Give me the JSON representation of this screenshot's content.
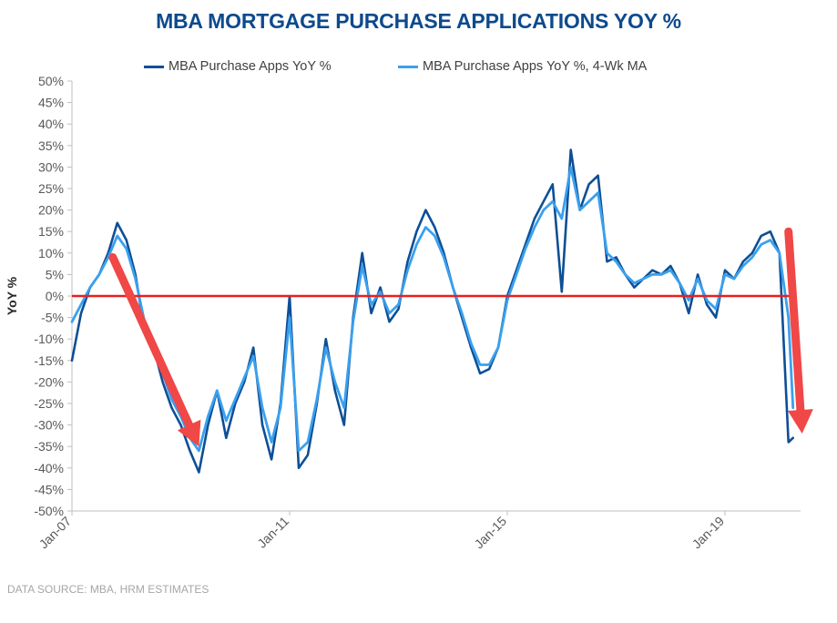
{
  "source_note": "DATA SOURCE: MBA, HRM ESTIMATES",
  "chart_data": {
    "type": "line",
    "title": "MBA MORTGAGE PURCHASE APPLICATIONS YOY %",
    "ylabel": "YoY %",
    "xlabel": "",
    "ylim": [
      -50,
      50
    ],
    "y_ticks": [
      50,
      45,
      40,
      35,
      30,
      25,
      20,
      15,
      10,
      5,
      0,
      -5,
      -10,
      -15,
      -20,
      -25,
      -30,
      -35,
      -40,
      -45,
      -50
    ],
    "y_tick_labels": [
      "50%",
      "45%",
      "40%",
      "35%",
      "30%",
      "25%",
      "20%",
      "15%",
      "10%",
      "5%",
      "0%",
      "-5%",
      "-10%",
      "-15%",
      "-20%",
      "-25%",
      "-30%",
      "-35%",
      "-40%",
      "-45%",
      "-50%"
    ],
    "x_range": [
      "2007-01",
      "2020-06"
    ],
    "x_ticks": [
      "2007-01",
      "2011-01",
      "2015-01",
      "2019-01"
    ],
    "x_tick_labels": [
      "Jan-07",
      "Jan-11",
      "Jan-15",
      "Jan-19"
    ],
    "grid": false,
    "legend_position": "top-center",
    "reference_line": {
      "y": 0,
      "color": "#e8201f"
    },
    "colors": {
      "raw": "#0d4f96",
      "ma": "#3aa0ee",
      "arrow": "#f04747",
      "title": "#0d4a8c"
    },
    "series": [
      {
        "name": "MBA Purchase Apps YoY %",
        "color": "#0d4f96",
        "x": [
          "2007-01",
          "2007-03",
          "2007-05",
          "2007-07",
          "2007-09",
          "2007-11",
          "2008-01",
          "2008-03",
          "2008-05",
          "2008-07",
          "2008-09",
          "2008-11",
          "2009-01",
          "2009-03",
          "2009-05",
          "2009-07",
          "2009-09",
          "2009-11",
          "2010-01",
          "2010-03",
          "2010-05",
          "2010-07",
          "2010-09",
          "2010-11",
          "2011-01",
          "2011-03",
          "2011-05",
          "2011-07",
          "2011-09",
          "2011-11",
          "2012-01",
          "2012-03",
          "2012-05",
          "2012-07",
          "2012-09",
          "2012-11",
          "2013-01",
          "2013-03",
          "2013-05",
          "2013-07",
          "2013-09",
          "2013-11",
          "2014-01",
          "2014-03",
          "2014-05",
          "2014-07",
          "2014-09",
          "2014-11",
          "2015-01",
          "2015-03",
          "2015-05",
          "2015-07",
          "2015-09",
          "2015-11",
          "2016-01",
          "2016-03",
          "2016-05",
          "2016-07",
          "2016-09",
          "2016-11",
          "2017-01",
          "2017-03",
          "2017-05",
          "2017-07",
          "2017-09",
          "2017-11",
          "2018-01",
          "2018-03",
          "2018-05",
          "2018-07",
          "2018-09",
          "2018-11",
          "2019-01",
          "2019-03",
          "2019-05",
          "2019-07",
          "2019-09",
          "2019-11",
          "2020-01",
          "2020-03",
          "2020-04"
        ],
        "values": [
          -15,
          -4,
          2,
          5,
          10,
          17,
          13,
          5,
          -8,
          -12,
          -20,
          -26,
          -30,
          -36,
          -41,
          -30,
          -22,
          -33,
          -25,
          -20,
          -12,
          -30,
          -38,
          -25,
          0,
          -40,
          -37,
          -25,
          -10,
          -22,
          -30,
          -5,
          10,
          -4,
          2,
          -6,
          -3,
          8,
          15,
          20,
          16,
          10,
          2,
          -5,
          -12,
          -18,
          -17,
          -12,
          0,
          6,
          12,
          18,
          22,
          26,
          1,
          34,
          20,
          26,
          28,
          8,
          9,
          5,
          2,
          4,
          6,
          5,
          7,
          3,
          -4,
          5,
          -2,
          -5,
          6,
          4,
          8,
          10,
          14,
          15,
          10,
          -34,
          -33
        ]
      },
      {
        "name": "MBA Purchase Apps YoY %, 4-Wk MA",
        "color": "#3aa0ee",
        "x": [
          "2007-01",
          "2007-03",
          "2007-05",
          "2007-07",
          "2007-09",
          "2007-11",
          "2008-01",
          "2008-03",
          "2008-05",
          "2008-07",
          "2008-09",
          "2008-11",
          "2009-01",
          "2009-03",
          "2009-05",
          "2009-07",
          "2009-09",
          "2009-11",
          "2010-01",
          "2010-03",
          "2010-05",
          "2010-07",
          "2010-09",
          "2010-11",
          "2011-01",
          "2011-03",
          "2011-05",
          "2011-07",
          "2011-09",
          "2011-11",
          "2012-01",
          "2012-03",
          "2012-05",
          "2012-07",
          "2012-09",
          "2012-11",
          "2013-01",
          "2013-03",
          "2013-05",
          "2013-07",
          "2013-09",
          "2013-11",
          "2014-01",
          "2014-03",
          "2014-05",
          "2014-07",
          "2014-09",
          "2014-11",
          "2015-01",
          "2015-03",
          "2015-05",
          "2015-07",
          "2015-09",
          "2015-11",
          "2016-01",
          "2016-03",
          "2016-05",
          "2016-07",
          "2016-09",
          "2016-11",
          "2017-01",
          "2017-03",
          "2017-05",
          "2017-07",
          "2017-09",
          "2017-11",
          "2018-01",
          "2018-03",
          "2018-05",
          "2018-07",
          "2018-09",
          "2018-11",
          "2019-01",
          "2019-03",
          "2019-05",
          "2019-07",
          "2019-09",
          "2019-11",
          "2020-01",
          "2020-03",
          "2020-04"
        ],
        "values": [
          -6,
          -2,
          2,
          5,
          9,
          14,
          11,
          4,
          -6,
          -11,
          -18,
          -24,
          -28,
          -33,
          -36,
          -28,
          -22,
          -29,
          -24,
          -19,
          -14,
          -26,
          -34,
          -26,
          -5,
          -36,
          -34,
          -24,
          -12,
          -20,
          -26,
          -6,
          7,
          -2,
          1,
          -4,
          -2,
          6,
          12,
          16,
          14,
          9,
          2,
          -4,
          -11,
          -16,
          -16,
          -12,
          -1,
          5,
          11,
          16,
          20,
          22,
          18,
          30,
          20,
          22,
          24,
          10,
          8,
          5,
          3,
          4,
          5,
          5,
          6,
          3,
          -1,
          4,
          -1,
          -3,
          5,
          4,
          7,
          9,
          12,
          13,
          10,
          -5,
          -26
        ]
      }
    ],
    "annotations": [
      {
        "type": "arrow",
        "from": [
          "2007-10",
          9
        ],
        "to": [
          "2009-05",
          -35
        ]
      },
      {
        "type": "arrow",
        "from": [
          "2020-03",
          15
        ],
        "to": [
          "2020-06",
          -32
        ]
      }
    ]
  }
}
